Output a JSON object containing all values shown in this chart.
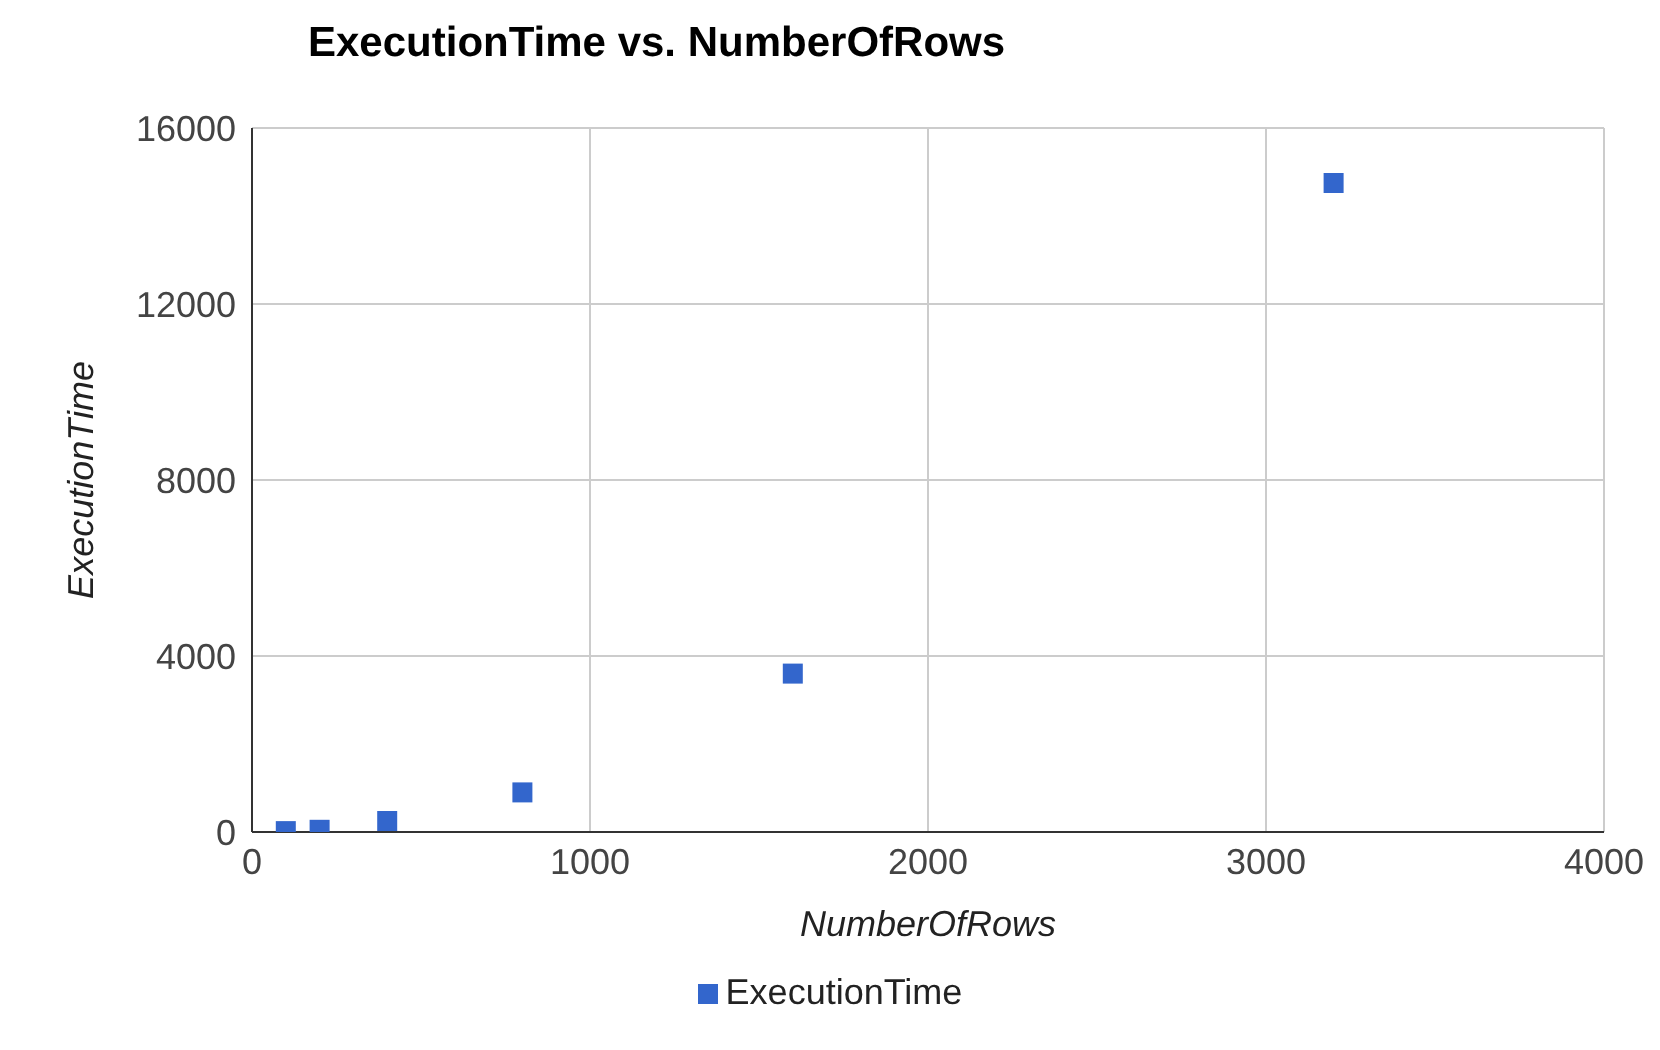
{
  "chart_data": {
    "type": "scatter",
    "title": "ExecutionTime vs. NumberOfRows",
    "xlabel": "NumberOfRows",
    "ylabel": "ExecutionTime",
    "x": [
      100,
      200,
      400,
      800,
      1600,
      3200
    ],
    "series": [
      {
        "name": "ExecutionTime",
        "color": "#3366cc",
        "values": [
          20,
          50,
          250,
          900,
          3600,
          14750
        ]
      }
    ],
    "xlim": [
      0,
      4000
    ],
    "xticks": [
      0,
      1000,
      2000,
      3000,
      4000
    ],
    "ylim": [
      0,
      16000
    ],
    "yticks": [
      0,
      4000,
      8000,
      12000,
      16000
    ],
    "grid": true,
    "legend": "bottom",
    "marker": "square"
  }
}
